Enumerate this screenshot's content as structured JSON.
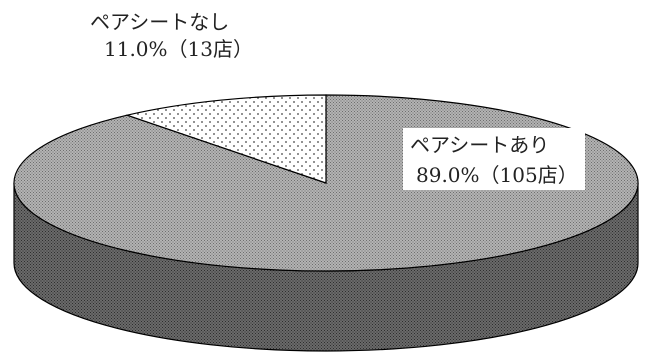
{
  "chart_data": {
    "type": "pie",
    "style": "3d",
    "title": "",
    "slices": [
      {
        "name": "ペアシートあり",
        "percent": 89.0,
        "count_label": "89.0%（105店）",
        "stores": 105,
        "fill": "stipple-gray"
      },
      {
        "name": "ペアシートなし",
        "percent": 11.0,
        "count_label": "11.0%（13店）",
        "stores": 13,
        "fill": "dotted-white"
      }
    ],
    "labels": [
      {
        "line1": "ペアシートあり",
        "line2": "89.0%（105店）"
      },
      {
        "line1": "ペアシートなし",
        "line2": "11.0%（13店）"
      }
    ],
    "legend": "none",
    "colors": {
      "top_stipple": "#9a9a9a",
      "side_stipple": "#555555",
      "dotted_slice_bg": "#ffffff",
      "dotted_slice_dots": "#444444",
      "outline": "#000000"
    }
  }
}
